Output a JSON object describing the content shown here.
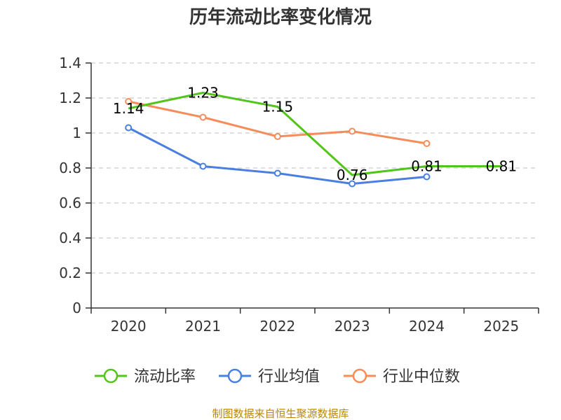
{
  "chart_data": {
    "type": "line",
    "title": "历年流动比率变化情况",
    "categories": [
      "2020",
      "2021",
      "2022",
      "2023",
      "2024",
      "2025"
    ],
    "y_ticks": [
      "0",
      "0.2",
      "0.4",
      "0.6",
      "0.8",
      "1",
      "1.2",
      "1.4"
    ],
    "ylim": [
      0,
      1.4
    ],
    "grid": true,
    "legend_position": "bottom",
    "series": [
      {
        "name": "流动比率",
        "color": "#52c41a",
        "values": [
          1.14,
          1.23,
          1.15,
          0.76,
          0.81,
          0.81
        ],
        "labels": [
          "1.14",
          "1.23",
          "1.15",
          "0.76",
          "0.81",
          "0.81"
        ],
        "show_labels": true,
        "show_markers": false
      },
      {
        "name": "行业均值",
        "color": "#4a7fe0",
        "values": [
          1.03,
          0.81,
          0.77,
          0.71,
          0.75,
          null
        ],
        "show_labels": false,
        "show_markers": true
      },
      {
        "name": "行业中位数",
        "color": "#f58c5a",
        "values": [
          1.18,
          1.09,
          0.98,
          1.01,
          0.94,
          null
        ],
        "show_labels": false,
        "show_markers": true
      }
    ]
  },
  "source_text": "制图数据来自恒生聚源数据库"
}
